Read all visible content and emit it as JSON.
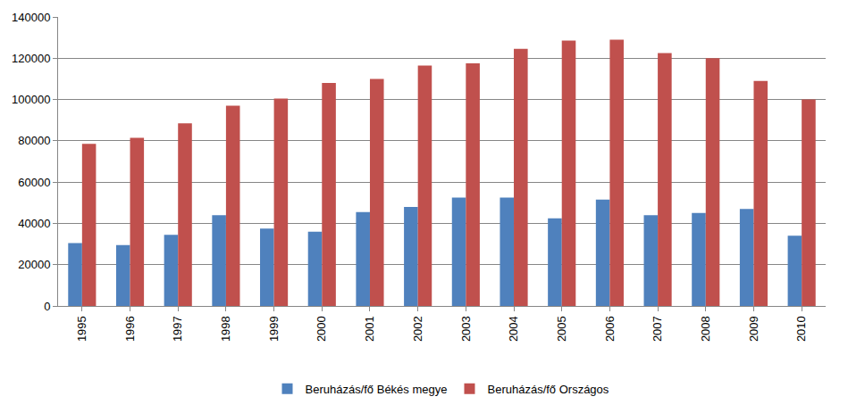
{
  "chart_data": {
    "type": "bar",
    "categories": [
      "1995",
      "1996",
      "1997",
      "1998",
      "1999",
      "2000",
      "2001",
      "2002",
      "2003",
      "2004",
      "2005",
      "2006",
      "2007",
      "2008",
      "2009",
      "2010"
    ],
    "series": [
      {
        "name": "Beruházás/fő Békés megye",
        "color": "#4f81bd",
        "values": [
          30500,
          29500,
          34500,
          44000,
          37500,
          36000,
          45500,
          48000,
          52500,
          52500,
          42500,
          51500,
          44000,
          45000,
          47000,
          34000
        ]
      },
      {
        "name": "Beruházás/fő Országos",
        "color": "#c0504d",
        "values": [
          78500,
          81500,
          88500,
          97000,
          100500,
          108000,
          110000,
          116500,
          117500,
          124500,
          128500,
          129000,
          122500,
          120000,
          109000,
          100000
        ]
      }
    ],
    "ylim": [
      0,
      140000
    ],
    "yticks": [
      0,
      20000,
      40000,
      60000,
      80000,
      100000,
      120000,
      140000
    ],
    "grid": true,
    "legend": "bottom"
  }
}
